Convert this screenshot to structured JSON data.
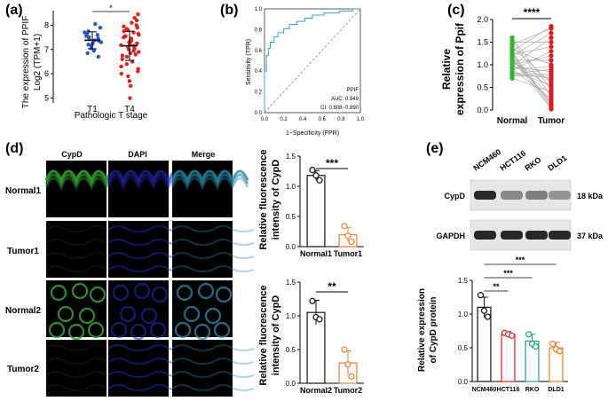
{
  "panels": {
    "a": {
      "label": "(a)",
      "chart_data": {
        "type": "scatter",
        "title": "",
        "xlabel": "Pathologic T stage",
        "ylabel_line1": "The expression of PPIF",
        "ylabel_line2": "Log2 (TPM+1)",
        "categories": [
          "T1",
          "T4"
        ],
        "ylim": [
          4.8,
          8.6
        ],
        "yticks": [
          5,
          6,
          7,
          8
        ],
        "significance": "*",
        "series": [
          {
            "name": "T1",
            "color": "#2a56c9",
            "mean": 7.38,
            "sd": 0.35,
            "values": [
              8.05,
              7.9,
              7.75,
              7.7,
              7.65,
              7.6,
              7.55,
              7.5,
              7.45,
              7.42,
              7.38,
              7.35,
              7.3,
              7.25,
              7.2,
              7.15,
              7.05,
              6.95,
              6.85,
              6.7
            ]
          },
          {
            "name": "T4",
            "color": "#e02020",
            "mean": 7.15,
            "sd": 0.6,
            "values": [
              8.45,
              8.3,
              8.2,
              8.1,
              8.0,
              7.95,
              7.9,
              7.85,
              7.8,
              7.75,
              7.7,
              7.65,
              7.6,
              7.55,
              7.5,
              7.45,
              7.4,
              7.35,
              7.3,
              7.25,
              7.2,
              7.18,
              7.15,
              7.1,
              7.05,
              7.0,
              6.95,
              6.9,
              6.85,
              6.8,
              6.75,
              6.7,
              6.6,
              6.5,
              6.4,
              6.3,
              6.2,
              6.1,
              6.0,
              5.9,
              5.7,
              5.5,
              5.0
            ]
          }
        ]
      }
    },
    "b": {
      "label": "(b)",
      "chart_data": {
        "type": "line",
        "title": "",
        "xlabel": "1−Specificity (FPR)",
        "ylabel": "Sensitivity (TPR)",
        "xlim": [
          0,
          1
        ],
        "ylim": [
          0,
          1
        ],
        "ticks": [
          "0.0",
          "0.2",
          "0.4",
          "0.6",
          "0.8",
          "1.0"
        ],
        "tick_values": [
          0,
          0.2,
          0.4,
          0.6,
          0.8,
          1.0
        ],
        "legend": [
          "PPIF",
          "AUC: 0.849",
          "CI: 0.808−0.890"
        ],
        "series": [
          {
            "name": "ROC",
            "color": "#3a9fd8",
            "x": [
              0,
              0,
              0.02,
              0.02,
              0.04,
              0.04,
              0.06,
              0.06,
              0.1,
              0.1,
              0.14,
              0.14,
              0.2,
              0.2,
              0.26,
              0.26,
              0.34,
              0.34,
              0.42,
              0.42,
              0.5,
              0.5,
              0.62,
              0.62,
              0.78,
              0.78,
              0.92,
              0.92,
              1.0
            ],
            "y": [
              0,
              0.4,
              0.4,
              0.55,
              0.55,
              0.62,
              0.62,
              0.68,
              0.68,
              0.73,
              0.73,
              0.77,
              0.77,
              0.81,
              0.81,
              0.85,
              0.85,
              0.88,
              0.88,
              0.91,
              0.91,
              0.94,
              0.94,
              0.96,
              0.96,
              0.98,
              0.98,
              1.0,
              1.0
            ]
          },
          {
            "name": "Reference",
            "color": "#888888",
            "x": [
              0,
              1
            ],
            "y": [
              0,
              1
            ]
          }
        ]
      }
    },
    "c": {
      "label": "(c)",
      "chart_data": {
        "type": "scatter",
        "title": "",
        "ylabel_line1": "Relative",
        "ylabel_line2": "expression of Ppif",
        "categories": [
          "Normal",
          "Tumor"
        ],
        "ylim": [
          0,
          2.0
        ],
        "yticks": [
          "0.0",
          "0.5",
          "1.0",
          "1.5",
          "2.0"
        ],
        "ytick_values": [
          0,
          0.5,
          1.0,
          1.5,
          2.0
        ],
        "significance": "****",
        "series": [
          {
            "name": "Normal",
            "color": "#2fb52f",
            "values": [
              1.6,
              1.55,
              1.5,
              1.45,
              1.4,
              1.35,
              1.3,
              1.28,
              1.25,
              1.22,
              1.2,
              1.18,
              1.15,
              1.12,
              1.1,
              1.08,
              1.05,
              1.02,
              1.0,
              0.98,
              0.95,
              0.92,
              0.9,
              0.88,
              0.85,
              0.82,
              0.8,
              0.78,
              0.75,
              0.7
            ]
          },
          {
            "name": "Tumor",
            "color": "#e01818",
            "values": [
              1.85,
              1.8,
              1.7,
              1.6,
              1.5,
              1.4,
              1.3,
              1.2,
              1.1,
              1.0,
              0.95,
              0.9,
              0.85,
              0.8,
              0.75,
              0.7,
              0.65,
              0.6,
              0.55,
              0.5,
              0.45,
              0.4,
              0.35,
              0.3,
              0.25,
              0.2,
              0.15,
              0.1,
              0.05,
              0.02
            ]
          }
        ]
      }
    },
    "d": {
      "label": "(d)",
      "columns": [
        "CypD",
        "DAPI",
        "Merge"
      ],
      "rows": [
        "Normal1",
        "Tumor1",
        "Normal2",
        "Tumor2"
      ],
      "chart_data": [
        {
          "type": "bar",
          "ylabel_line1": "Relative fluorescence",
          "ylabel_line2": "intensity of CypD",
          "categories": [
            "Normal1",
            "Tumor1"
          ],
          "values": [
            1.18,
            0.2
          ],
          "errors": [
            0.08,
            0.12
          ],
          "points": [
            [
              1.27,
              1.18,
              1.1
            ],
            [
              0.34,
              0.18,
              0.08
            ]
          ],
          "colors": [
            "#111111",
            "#f08030"
          ],
          "ylim": [
            0,
            1.5
          ],
          "yticks": [
            "0.0",
            "0.5",
            "1.0",
            "1.5"
          ],
          "ytick_values": [
            0,
            0.5,
            1.0,
            1.5
          ],
          "significance": "***"
        },
        {
          "type": "bar",
          "ylabel_line1": "Relative fluorescence",
          "ylabel_line2": "intensity of CypD",
          "categories": [
            "Normal2",
            "Tumor2"
          ],
          "values": [
            1.05,
            0.3
          ],
          "errors": [
            0.18,
            0.18
          ],
          "points": [
            [
              1.22,
              0.98,
              0.95
            ],
            [
              0.5,
              0.28,
              0.1
            ]
          ],
          "colors": [
            "#111111",
            "#f08030"
          ],
          "ylim": [
            0,
            1.5
          ],
          "yticks": [
            "0.0",
            "0.5",
            "1.0",
            "1.5"
          ],
          "ytick_values": [
            0,
            0.5,
            1.0,
            1.5
          ],
          "significance": "**"
        }
      ]
    },
    "e": {
      "label": "(e)",
      "blot": {
        "lanes": [
          "NCM460",
          "HCT116",
          "RKO",
          "DLD1"
        ],
        "rows": [
          {
            "name": "CypD",
            "size": "18 kDa",
            "intensity": [
              1.0,
              0.55,
              0.6,
              0.5
            ]
          },
          {
            "name": "GAPDH",
            "size": "37 kDa",
            "intensity": [
              1.0,
              1.0,
              1.0,
              1.0
            ]
          }
        ]
      },
      "chart_data": {
        "type": "bar",
        "ylabel_line1": "Relative expression",
        "ylabel_line2": "of CypD protein",
        "categories": [
          "NCM460",
          "HCT116",
          "RKO",
          "DLD1"
        ],
        "values": [
          1.1,
          0.7,
          0.6,
          0.5
        ],
        "errors": [
          0.15,
          0.04,
          0.1,
          0.08
        ],
        "points": [
          [
            1.28,
            1.05,
            0.96
          ],
          [
            0.72,
            0.7,
            0.68
          ],
          [
            0.7,
            0.56,
            0.52
          ],
          [
            0.56,
            0.48,
            0.45
          ]
        ],
        "colors": [
          "#111111",
          "#e02020",
          "#22a080",
          "#f08020"
        ],
        "ylim": [
          0,
          1.5
        ],
        "yticks": [
          "0.0",
          "0.5",
          "1.0",
          "1.5"
        ],
        "ytick_values": [
          0,
          0.5,
          1.0,
          1.5
        ],
        "significance": [
          "**",
          "***",
          "***"
        ]
      }
    }
  }
}
